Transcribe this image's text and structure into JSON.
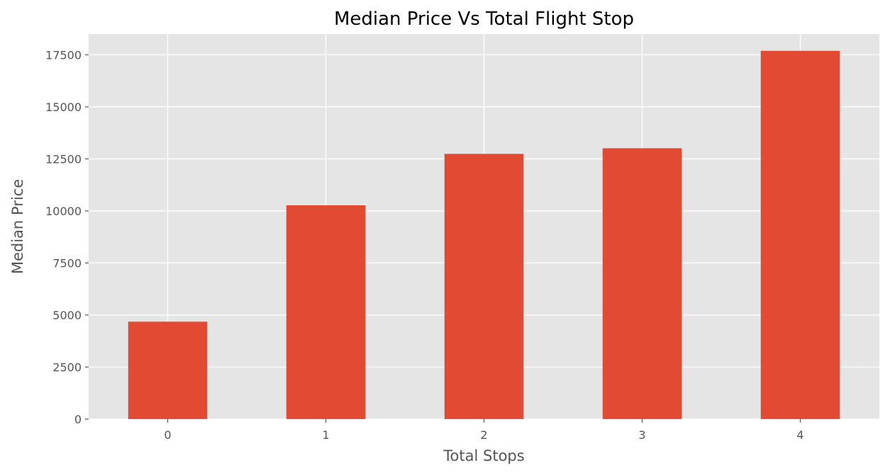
{
  "chart_data": {
    "type": "bar",
    "title": "Median Price Vs Total Flight Stop",
    "xlabel": "Total Stops",
    "ylabel": "Median Price",
    "categories": [
      "0",
      "1",
      "2",
      "3",
      "4"
    ],
    "values": [
      4680,
      10270,
      12740,
      13010,
      17690
    ],
    "ylim": [
      0,
      18500
    ],
    "yticks": [
      0,
      2500,
      5000,
      7500,
      10000,
      12500,
      15000,
      17500
    ],
    "grid": true,
    "legend": "none",
    "colors": {
      "bar": "#E24A33",
      "plot_background": "#E5E5E5",
      "grid": "#FFFFFF",
      "tick_text": "#555555",
      "title_text": "#000000"
    }
  }
}
